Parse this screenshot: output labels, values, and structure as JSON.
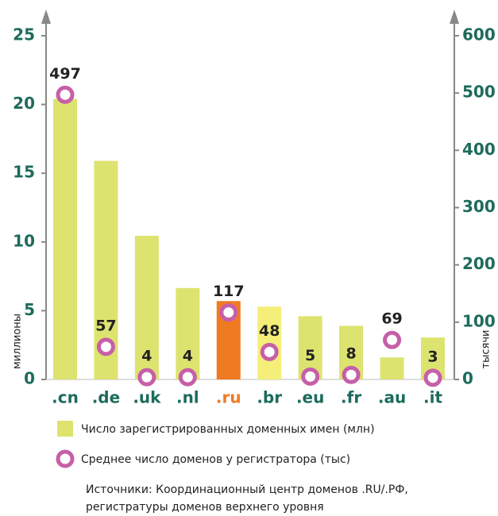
{
  "chart_data": {
    "type": "bar_dot",
    "y_label": "миллионы",
    "y2_label": "тысячи",
    "categories": [
      ".cn",
      ".de",
      ".uk",
      ".nl",
      ".ru",
      ".br",
      ".eu",
      ".fr",
      ".au",
      ".it"
    ],
    "category_colors": [
      "#1d6b5c",
      "#1d6b5c",
      "#1d6b5c",
      "#1d6b5c",
      "#f07a21",
      "#1d6b5c",
      "#1d6b5c",
      "#1d6b5c",
      "#1d6b5c",
      "#1d6b5c"
    ],
    "series": [
      {
        "name": "Число зарегистрированных доменных имен (млн)",
        "color": "#dde36f",
        "colors": [
          "#dde36f",
          "#dde36f",
          "#dde36f",
          "#dde36f",
          "#f07a21",
          "#f5ef7a",
          "#dde36f",
          "#dde36f",
          "#dde36f",
          "#dde36f"
        ],
        "values": [
          20.4,
          15.9,
          10.45,
          6.65,
          5.7,
          5.3,
          4.6,
          3.9,
          1.6,
          3.05
        ]
      },
      {
        "name": "Среднее число доменов у регистратора (тыс)",
        "color": "#c75fa8",
        "axis": "y2",
        "values": [
          497,
          57,
          4,
          4,
          117,
          48,
          5,
          8,
          69,
          3
        ]
      }
    ],
    "ylim": [
      0,
      25
    ],
    "yticks": [
      0,
      5,
      10,
      15,
      20,
      25
    ],
    "y2lim": [
      0,
      600
    ],
    "y2ticks": [
      0,
      100,
      200,
      300,
      400,
      500,
      600
    ],
    "notes": [
      "Источники: Координационный центр доменов .RU/.РФ,",
      "регистратуры доменов верхнего уровня"
    ]
  }
}
